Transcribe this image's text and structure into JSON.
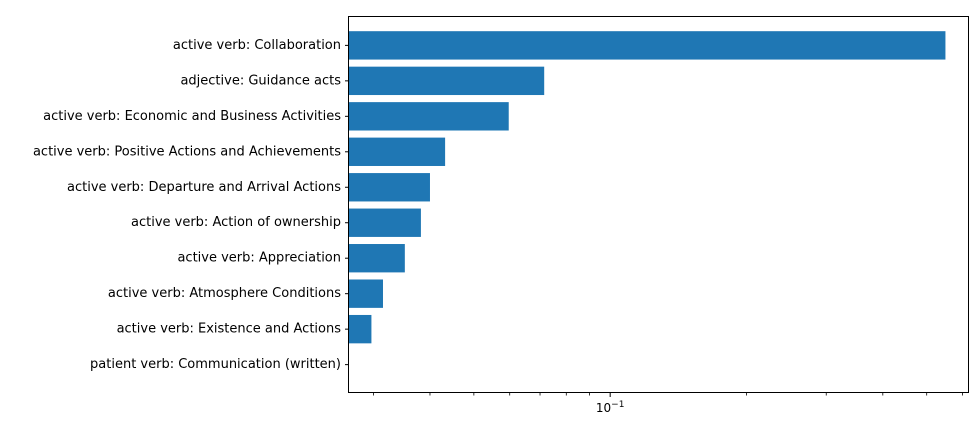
{
  "chart_data": {
    "type": "bar",
    "orientation": "horizontal",
    "x_scale": "log",
    "grid": false,
    "legend": "none",
    "title": "",
    "xlabel": "",
    "ylabel": "",
    "bar_color": "#1f77b4",
    "xlim": [
      0.0265,
      0.62
    ],
    "categories": [
      "active verb: Collaboration",
      "adjective: Guidance acts",
      "active verb: Economic and Business Activities",
      "active verb: Positive Actions and Achievements",
      "active verb: Departure and Arrival Actions",
      "active verb: Action of ownership",
      "active verb: Appreciation",
      "active verb: Atmosphere Conditions",
      "active verb: Existence and Actions",
      "patient verb: Communication (written)"
    ],
    "values": [
      0.55,
      0.0715,
      0.0597,
      0.0432,
      0.04,
      0.0382,
      0.0352,
      0.0315,
      0.0297,
      0.0252
    ],
    "major_tick_labels": [
      {
        "value": 0.1,
        "base": "10",
        "exponent": "−1"
      }
    ],
    "minor_ticks": [
      0.03,
      0.04,
      0.05,
      0.06,
      0.07,
      0.08,
      0.09,
      0.2,
      0.3,
      0.4,
      0.5,
      0.6
    ]
  }
}
